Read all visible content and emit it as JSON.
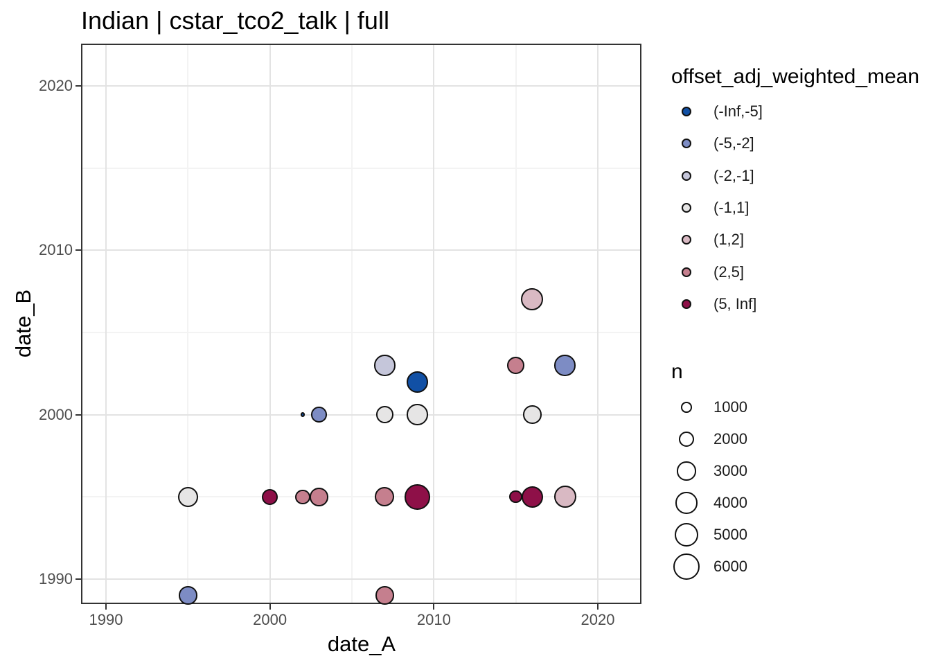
{
  "title": "Indian | cstar_tco2_talk | full",
  "chart_data": {
    "type": "scatter",
    "title": "Indian | cstar_tco2_talk | full",
    "xlabel": "date_A",
    "ylabel": "date_B",
    "xlim": [
      1988.48,
      2022.66
    ],
    "ylim": [
      1988.48,
      2022.57
    ],
    "x_major_ticks": [
      1990,
      2000,
      2010,
      2020
    ],
    "y_major_ticks": [
      1990,
      2000,
      2010,
      2020
    ],
    "x_minor_gridlines": [
      1995,
      2005,
      2015
    ],
    "y_minor_gridlines": [
      1995,
      2005,
      2015
    ],
    "grid": "major+minor",
    "legend_position": "right",
    "color_legend": {
      "title": "offset_adj_weighted_mean",
      "entries": [
        {
          "label": "(-Inf,-5]",
          "color": "#1150a5"
        },
        {
          "label": "(-5,-2]",
          "color": "#7d8cc4"
        },
        {
          "label": "(-2,-1]",
          "color": "#c5c6da"
        },
        {
          "label": "(-1,1]",
          "color": "#e6e5e5"
        },
        {
          "label": "(1,2]",
          "color": "#d9b9c3"
        },
        {
          "label": "(2,5]",
          "color": "#c57f8e"
        },
        {
          "label": "(5, Inf]",
          "color": "#8e1048"
        }
      ]
    },
    "size_legend": {
      "title": "n",
      "values": [
        1000,
        2000,
        3000,
        4000,
        5000,
        6000
      ]
    },
    "size_scale": {
      "radius_px_per_sqrt_n": 0.247
    },
    "points": [
      {
        "x": 1995,
        "y": 1989,
        "bin": "(-5,-2]",
        "n": 2900
      },
      {
        "x": 2007,
        "y": 1989,
        "bin": "(2,5]",
        "n": 2900
      },
      {
        "x": 1995,
        "y": 1995,
        "bin": "(-1,1]",
        "n": 3500
      },
      {
        "x": 2000,
        "y": 1995,
        "bin": "(5, Inf]",
        "n": 2200
      },
      {
        "x": 2002,
        "y": 1995,
        "bin": "(2,5]",
        "n": 1900
      },
      {
        "x": 2003,
        "y": 1995,
        "bin": "(2,5]",
        "n": 2900
      },
      {
        "x": 2007,
        "y": 1995,
        "bin": "(2,5]",
        "n": 3200
      },
      {
        "x": 2009,
        "y": 1995,
        "bin": "(5, Inf]",
        "n": 5500
      },
      {
        "x": 2015,
        "y": 1995,
        "bin": "(5, Inf]",
        "n": 1400
      },
      {
        "x": 2016,
        "y": 1995,
        "bin": "(5, Inf]",
        "n": 4000
      },
      {
        "x": 2018,
        "y": 1995,
        "bin": "(1,2]",
        "n": 4200
      },
      {
        "x": 2002,
        "y": 2000,
        "bin": "(-Inf,-5]",
        "n": 200
      },
      {
        "x": 2003,
        "y": 2000,
        "bin": "(-5,-2]",
        "n": 2100
      },
      {
        "x": 2007,
        "y": 2000,
        "bin": "(-1,1]",
        "n": 2500
      },
      {
        "x": 2009,
        "y": 2000,
        "bin": "(-1,1]",
        "n": 3800
      },
      {
        "x": 2016,
        "y": 2000,
        "bin": "(-1,1]",
        "n": 2900
      },
      {
        "x": 2009,
        "y": 2002,
        "bin": "(-Inf,-5]",
        "n": 3900
      },
      {
        "x": 2007,
        "y": 2003,
        "bin": "(-2,-1]",
        "n": 3800
      },
      {
        "x": 2015,
        "y": 2003,
        "bin": "(2,5]",
        "n": 2500
      },
      {
        "x": 2018,
        "y": 2003,
        "bin": "(-5,-2]",
        "n": 3800
      },
      {
        "x": 2016,
        "y": 2007,
        "bin": "(1,2]",
        "n": 4200
      }
    ]
  }
}
